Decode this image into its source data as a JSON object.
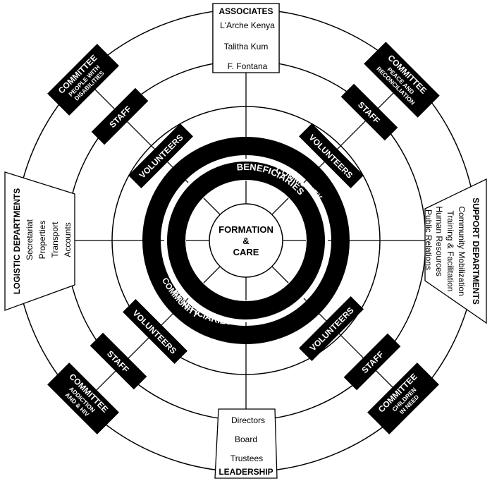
{
  "colors": {
    "ink": "#000000",
    "paper": "#ffffff"
  },
  "center": {
    "line1": "FORMATION",
    "line2": "&",
    "line3": "CARE"
  },
  "rings": {
    "beneficiaries": "BENEFICIARIES",
    "community": "COMMUNITY"
  },
  "labels": {
    "volunteers": "VOLUNTEERS",
    "staff": "STAFF"
  },
  "committees": {
    "disabilities": {
      "title": "COMMITTEE",
      "line1": "PEOPLE WITH",
      "line2": "DISABILITIES"
    },
    "peace": {
      "title": "COMMITTEE",
      "line1": "PEACE AND",
      "line2": "RECONCILIATION"
    },
    "addiction": {
      "title": "COMMITTEE",
      "line1": "ADDICTION",
      "line2": "AND & HIV"
    },
    "children": {
      "title": "COMMITTEE",
      "line1": "CHILDREN",
      "line2": "IN NEED"
    }
  },
  "associates": {
    "title": "ASSOCIATES",
    "items": [
      "L'Arche Kenya",
      "Talitha Kum",
      "F. Fontana"
    ]
  },
  "leadership": {
    "title": "LEADERSHIP",
    "items": [
      "Directors",
      "Board",
      "Trustees"
    ]
  },
  "logistic": {
    "title": "LOGISTIC DEPARTMENTS",
    "items": [
      "Secretariat",
      "Properties",
      "Transport",
      "Accounts"
    ]
  },
  "support": {
    "title": "SUPPORT DEPARTMENTS",
    "items": [
      "Community Mobilization",
      "Training & Facilitation",
      "Human Resources",
      "Public Relations"
    ]
  }
}
